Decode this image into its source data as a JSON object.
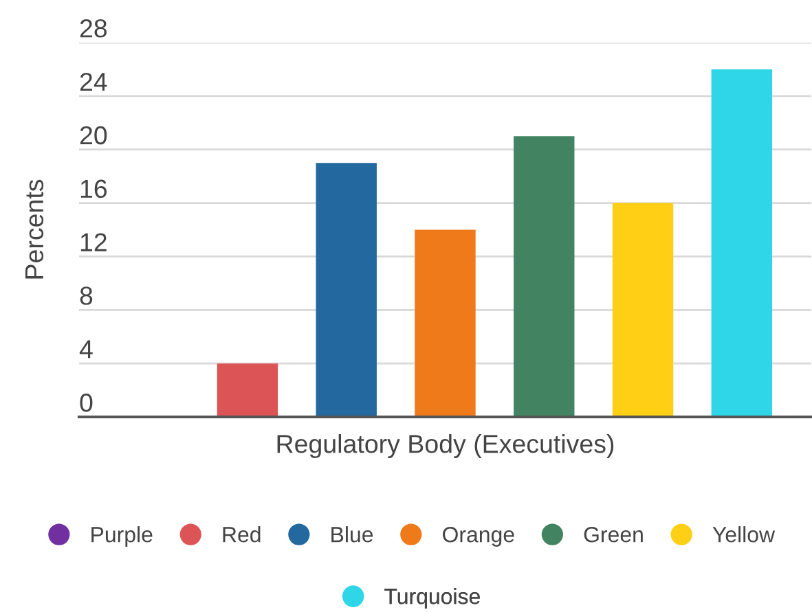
{
  "chart_data": {
    "type": "bar",
    "ylabel": "Percents",
    "categories": [
      "Regulatory Body (Executives)"
    ],
    "series": [
      {
        "name": "Purple",
        "color": "#7030a0",
        "values": [
          0
        ]
      },
      {
        "name": "Red",
        "color": "#dc5456",
        "values": [
          4
        ]
      },
      {
        "name": "Blue",
        "color": "#23689f",
        "values": [
          19
        ]
      },
      {
        "name": "Orange",
        "color": "#ef7a1a",
        "values": [
          14
        ]
      },
      {
        "name": "Green",
        "color": "#428461",
        "values": [
          21
        ]
      },
      {
        "name": "Yellow",
        "color": "#fecf14",
        "values": [
          16
        ]
      },
      {
        "name": "Turquoise",
        "color": "#2fd6e7",
        "values": [
          26
        ]
      }
    ],
    "ylim": [
      0,
      28
    ],
    "yticks": [
      0,
      4,
      8,
      12,
      16,
      20,
      24,
      28
    ],
    "grid": "y",
    "legend": "bottom"
  }
}
